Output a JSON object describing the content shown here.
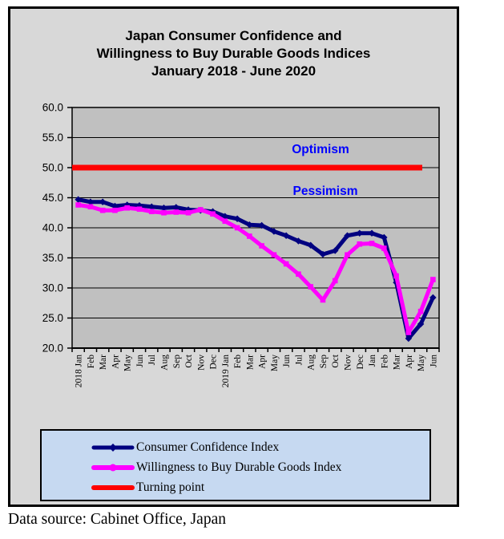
{
  "chart": {
    "title_lines": [
      "Japan Consumer Confidence and",
      "Willingness to Buy Durable Goods Indices",
      "January 2018 - June 2020"
    ]
  },
  "annotations": {
    "optimism": "Optimism",
    "pessimism": "Pessimism"
  },
  "legend": {
    "items": [
      {
        "label": "Consumer Confidence Index",
        "color": "#000080",
        "marker": "diamond"
      },
      {
        "label": "Willingness to Buy Durable Goods Index",
        "color": "#FF00FF",
        "marker": "circle"
      },
      {
        "label": "Turning point",
        "color": "#FF0000",
        "marker": "none"
      }
    ]
  },
  "footer": {
    "source_text": "Data source: Cabinet Office, Japan"
  },
  "colors": {
    "cci_line": "#000080",
    "willingness_line": "#FF00FF",
    "turning_point_line": "#FF0000",
    "annotation_text": "#0000FF",
    "plot_background": "#C0C0C0",
    "chart_background": "#D8D8D8",
    "legend_background": "#C6D9F1",
    "gridline": "#000000"
  },
  "chart_data": {
    "type": "line",
    "title": "Japan Consumer Confidence and Willingness to Buy Durable Goods Indices January 2018 - June 2020",
    "categories": [
      "2018 Jan",
      "Feb",
      "Mar",
      "Apr",
      "May",
      "Jun",
      "Jul",
      "Aug",
      "Sep",
      "Oct",
      "Nov",
      "Dec",
      "2019 Jan",
      "Feb",
      "Mar",
      "Apr",
      "May",
      "Jun",
      "Jul",
      "Aug",
      "Sep",
      "Oct",
      "Nov",
      "Dec",
      "Jan",
      "Feb",
      "Mar",
      "Apr",
      "May",
      "Jun"
    ],
    "series": [
      {
        "name": "Consumer Confidence Index",
        "color": "#000080",
        "values": [
          44.7,
          44.3,
          44.3,
          43.6,
          43.8,
          43.7,
          43.5,
          43.3,
          43.4,
          43.0,
          42.9,
          42.7,
          41.9,
          41.5,
          40.5,
          40.4,
          39.4,
          38.7,
          37.8,
          37.1,
          35.6,
          36.2,
          38.7,
          39.1,
          39.1,
          38.4,
          30.9,
          21.6,
          24.0,
          28.4
        ]
      },
      {
        "name": "Willingness to Buy Durable Goods Index",
        "color": "#FF00FF",
        "values": [
          43.8,
          43.5,
          42.9,
          42.9,
          43.3,
          43.1,
          42.7,
          42.5,
          42.6,
          42.5,
          43.0,
          42.3,
          41.1,
          40.0,
          38.6,
          37.0,
          35.5,
          34.0,
          32.3,
          30.2,
          28.0,
          31.2,
          35.5,
          37.3,
          37.4,
          36.6,
          32.0,
          22.6,
          26.1,
          31.4
        ]
      },
      {
        "name": "Turning point",
        "color": "#FF0000",
        "constant_value": 50.0
      }
    ],
    "xlabel": "",
    "ylabel": "",
    "ylim": [
      20.0,
      60.0
    ],
    "ytick_step": 5.0,
    "ytick_labels": [
      "60.0",
      "55.0",
      "50.0",
      "45.0",
      "40.0",
      "35.0",
      "30.0",
      "25.0",
      "20.0"
    ],
    "grid": true,
    "legend_position": "bottom",
    "annotations": [
      {
        "text": "Optimism",
        "position": "above-turning-point-line"
      },
      {
        "text": "Pessimism",
        "position": "below-turning-point-line"
      }
    ]
  }
}
